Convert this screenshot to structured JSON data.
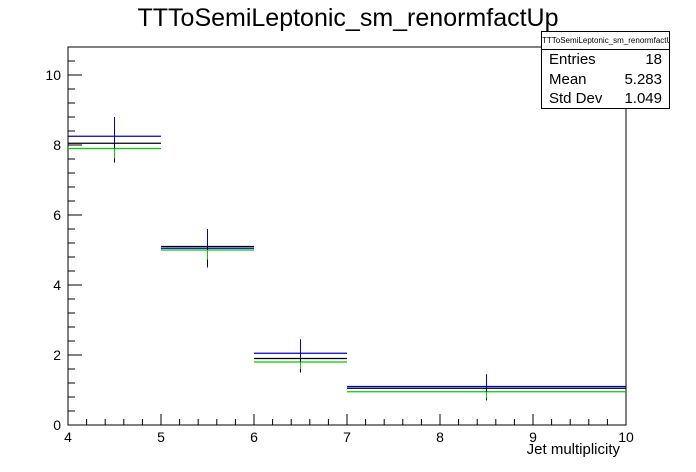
{
  "chart_data": {
    "type": "histogram",
    "title": "TTToSemiLeptonic_sm_renormfactUp",
    "xlabel": "Jet multiplicity",
    "ylabel": "",
    "xlim": [
      4,
      10
    ],
    "ylim": [
      0,
      10.8
    ],
    "x_ticks": [
      "4",
      "5",
      "6",
      "7",
      "8",
      "9",
      "10"
    ],
    "y_ticks": [
      "0",
      "2",
      "4",
      "6",
      "8",
      "10"
    ],
    "bins": [
      {
        "x_low": 4,
        "x_high": 5,
        "center": 4.5,
        "values": {
          "black": 8.05,
          "blue": 8.25,
          "green": 7.9
        },
        "error": 0.55
      },
      {
        "x_low": 5,
        "x_high": 6,
        "center": 5.5,
        "values": {
          "black": 5.1,
          "blue": 5.05,
          "green": 5.0
        },
        "error": 0.55
      },
      {
        "x_low": 6,
        "x_high": 7,
        "center": 6.5,
        "values": {
          "black": 1.9,
          "blue": 2.05,
          "green": 1.8
        },
        "error": 0.4
      },
      {
        "x_low": 7,
        "x_high": 10,
        "center": 8.5,
        "values": {
          "black": 1.05,
          "blue": 1.1,
          "green": 0.95
        },
        "error": 0.35
      }
    ],
    "series_colors": {
      "black": "#000000",
      "blue": "#0000cc",
      "green": "#00cc00"
    },
    "stats": {
      "title": "TTToSemiLeptonic_sm_renormfactUp",
      "rows": [
        {
          "label": "Entries",
          "value": "18"
        },
        {
          "label": "Mean",
          "value": "5.283"
        },
        {
          "label": "Std Dev",
          "value": "1.049"
        }
      ]
    }
  }
}
